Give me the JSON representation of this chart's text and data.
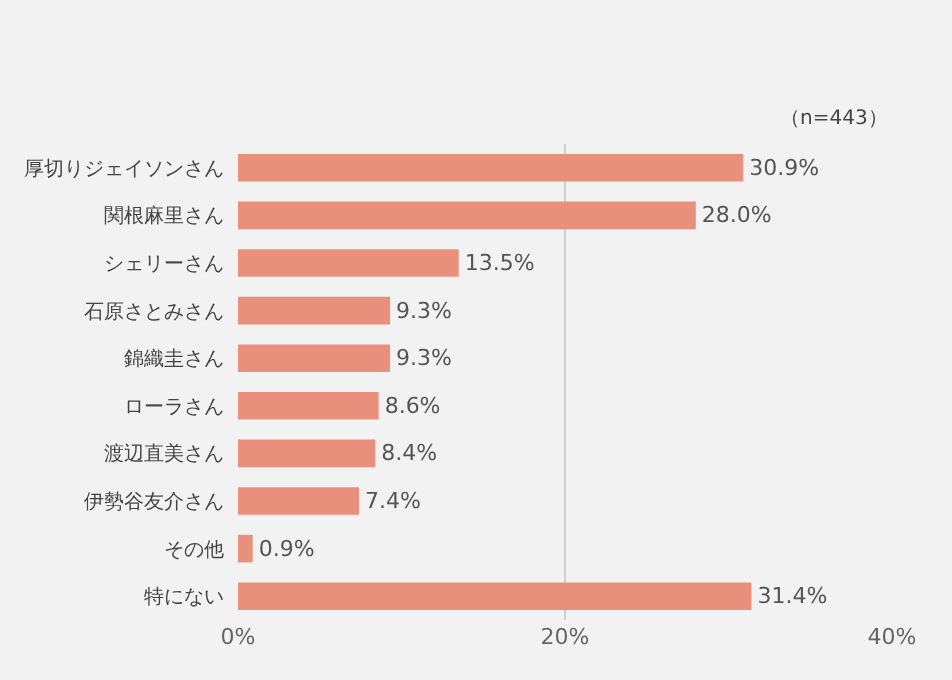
{
  "chart_data": {
    "type": "bar",
    "orientation": "horizontal",
    "categories": [
      "厚切りジェイソンさん",
      "関根麻里さん",
      "シェリーさん",
      "石原さとみさん",
      "錦織圭さん",
      "ローラさん",
      "渡辺直美さん",
      "伊勢谷友介さん",
      "その他",
      "特にない"
    ],
    "values": [
      30.9,
      28.0,
      13.5,
      9.3,
      9.3,
      8.6,
      8.4,
      7.4,
      0.9,
      31.4
    ],
    "value_labels": [
      "30.9%",
      "28.0%",
      "13.5%",
      "9.3%",
      "9.3%",
      "8.6%",
      "8.4%",
      "7.4%",
      "0.9%",
      "31.4%"
    ],
    "color": "#e8907c",
    "xlim": [
      0,
      40
    ],
    "xticks": [
      {
        "value": 0,
        "label": "0%"
      },
      {
        "value": 20,
        "label": "20%"
      },
      {
        "value": 40,
        "label": "40%"
      }
    ],
    "grid": "x",
    "annotations": [
      "（n=443）"
    ]
  }
}
